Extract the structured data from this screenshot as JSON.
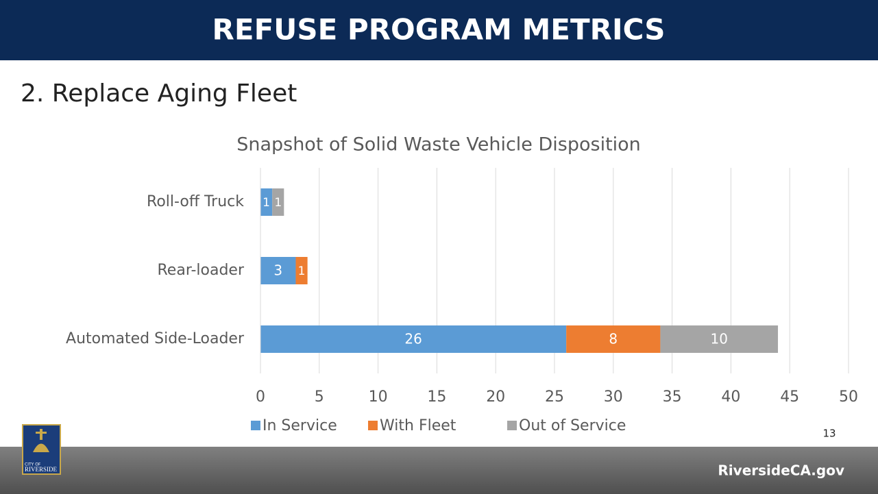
{
  "header": {
    "title": "REFUSE PROGRAM METRICS"
  },
  "subtitle": "2. Replace Aging Fleet",
  "page_number": 13,
  "footer": {
    "url": "RiversideCA.gov"
  },
  "logo": {
    "line1": "CITY OF",
    "line2": "RIVERSIDE"
  },
  "chart_data": {
    "type": "bar",
    "orientation": "horizontal",
    "stacked": true,
    "title": "Snapshot of Solid Waste Vehicle Disposition",
    "categories": [
      "Roll-off Truck",
      "Rear-loader",
      "Automated Side-Loader"
    ],
    "series": [
      {
        "name": "In Service",
        "color": "#5b9bd5",
        "values": [
          1,
          3,
          26
        ]
      },
      {
        "name": "With Fleet",
        "color": "#ed7d31",
        "values": [
          null,
          1,
          8
        ]
      },
      {
        "name": "Out of Service",
        "color": "#a5a5a5",
        "values": [
          1,
          null,
          10
        ]
      }
    ],
    "xlim": [
      0,
      50
    ],
    "xticks": [
      0,
      5,
      10,
      15,
      20,
      25,
      30,
      35,
      40,
      45,
      50
    ],
    "grid": true,
    "legend": "bottom"
  }
}
